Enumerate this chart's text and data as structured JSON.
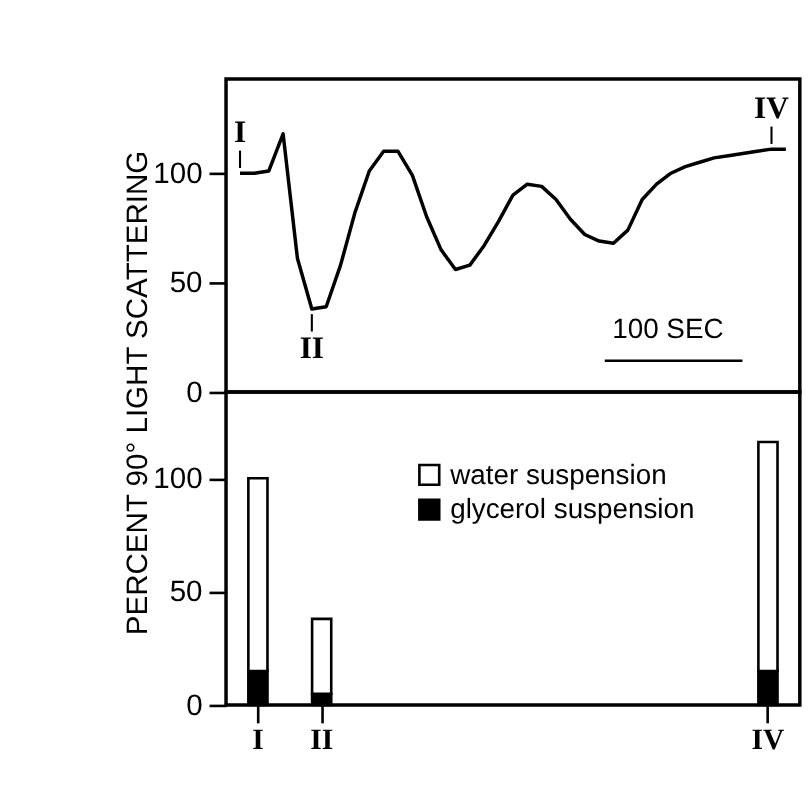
{
  "chart_data": [
    {
      "type": "line",
      "ylim": [
        0,
        143
      ],
      "yticks": [
        0,
        50,
        100
      ],
      "tick_labels": "y",
      "grid": false,
      "categories": [
        null,
        null,
        null,
        null,
        null,
        null,
        null,
        null,
        null,
        null,
        null,
        null,
        null,
        null,
        null,
        null,
        null,
        null,
        null,
        null,
        null,
        null,
        null,
        null,
        null,
        null,
        null,
        null,
        null,
        null,
        null,
        null,
        null,
        null,
        null,
        null,
        null,
        null,
        null
      ],
      "series": [
        {
          "color": "#000000",
          "values": [
            100,
            100,
            101,
            118,
            61,
            38,
            39,
            58,
            82,
            101,
            110,
            110,
            99,
            80,
            65,
            56,
            58,
            67,
            78,
            90,
            95,
            94,
            88,
            79,
            72,
            69,
            68,
            74,
            88,
            95,
            100,
            103,
            105,
            107,
            108,
            109,
            110,
            111,
            111
          ]
        }
      ],
      "annotations": [
        {
          "text": "I",
          "y": 100
        },
        {
          "text": "II",
          "y": 38
        },
        {
          "text": "IV",
          "y": 111
        },
        "100 SEC"
      ]
    },
    {
      "type": "bar",
      "stacked": true,
      "ylim": [
        0,
        138
      ],
      "yticks": [
        0,
        50,
        100
      ],
      "categories": [
        "I",
        "II",
        null,
        null,
        null,
        null,
        null,
        null,
        "IV"
      ],
      "ylabel": "PERCENT 90° LIGHT SCATTERING",
      "grid": false,
      "legend": "top",
      "series": [
        {
          "name": "glycerol suspension",
          "color": "#000000",
          "values": [
            15,
            5,
            null,
            null,
            null,
            null,
            null,
            null,
            15
          ]
        },
        {
          "name": "water suspension",
          "color": "#ffffff",
          "values": [
            85,
            33,
            null,
            null,
            null,
            null,
            null,
            null,
            101
          ]
        }
      ]
    }
  ]
}
